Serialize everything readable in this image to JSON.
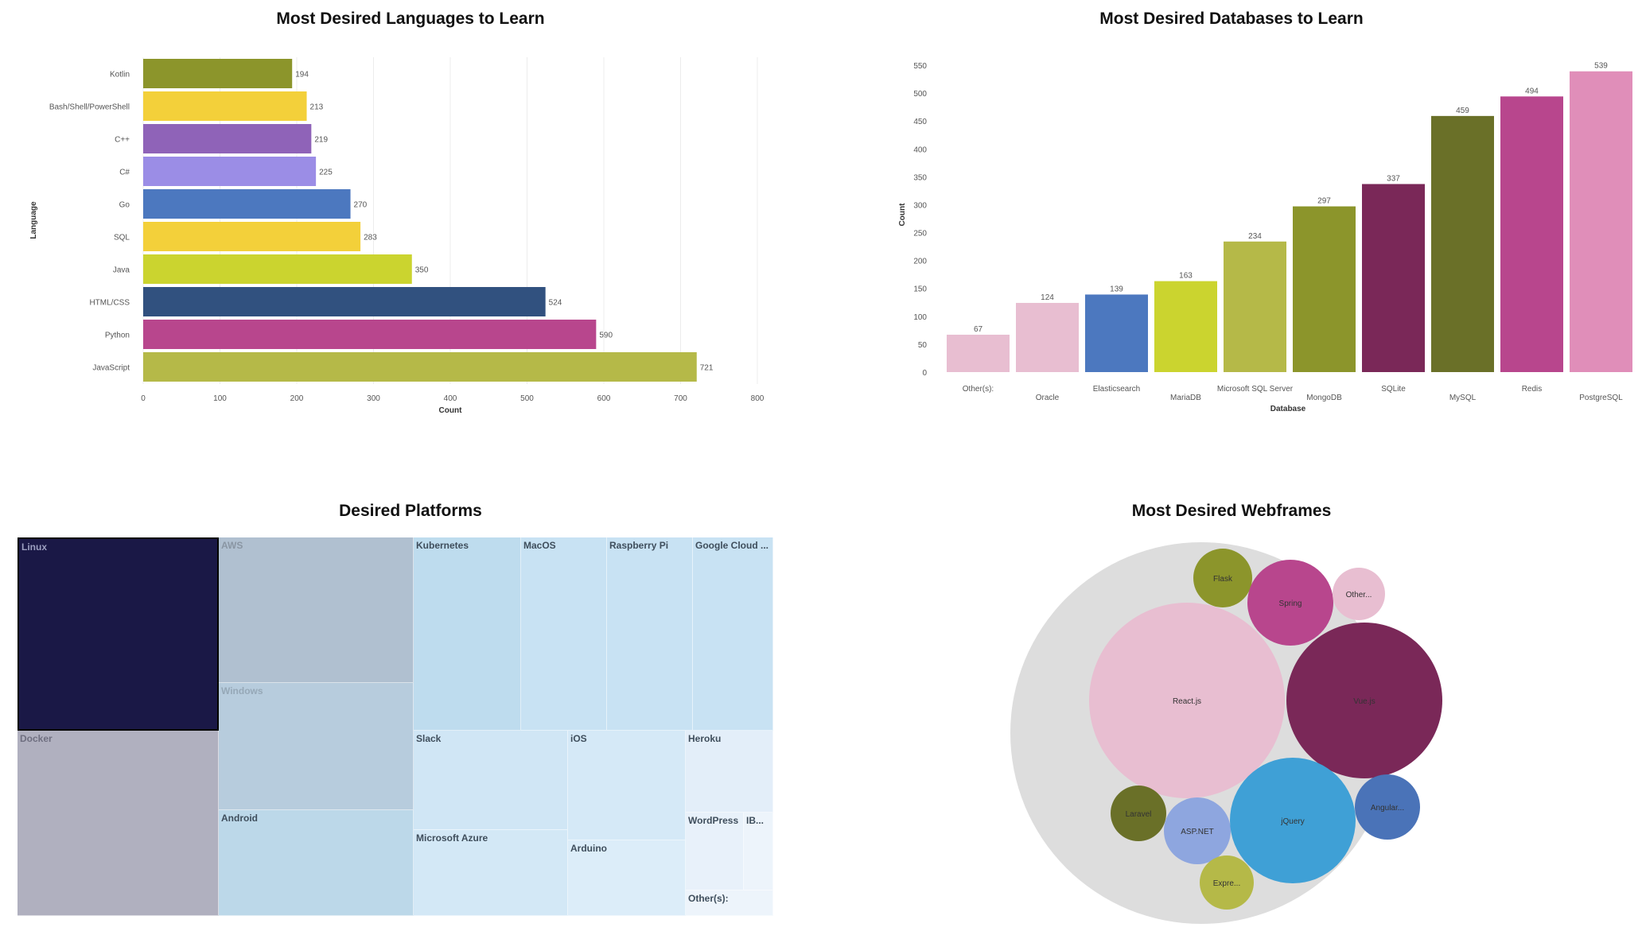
{
  "chart_data": [
    {
      "id": "languages",
      "type": "bar",
      "orientation": "horizontal",
      "title": "Most Desired Languages to Learn",
      "xlabel": "Count",
      "ylabel": "Language",
      "xlim": [
        0,
        800
      ],
      "xticks": [
        0,
        100,
        200,
        300,
        400,
        500,
        600,
        700,
        800
      ],
      "categories": [
        "Kotlin",
        "Bash/Shell/PowerShell",
        "C++",
        "C#",
        "Go",
        "SQL",
        "Java",
        "HTML/CSS",
        "Python",
        "JavaScript"
      ],
      "values": [
        194,
        213,
        219,
        225,
        270,
        283,
        350,
        524,
        590,
        721
      ],
      "colors": [
        "#8c952b",
        "#f3d03a",
        "#8f63b8",
        "#9b8de6",
        "#4c78bf",
        "#f3d03a",
        "#cbd42f",
        "#31517f",
        "#b8468d",
        "#b5b948"
      ]
    },
    {
      "id": "databases",
      "type": "bar",
      "orientation": "vertical",
      "title": "Most Desired Databases to Learn",
      "xlabel": "Database",
      "ylabel": "Count",
      "ylim": [
        0,
        550
      ],
      "yticks": [
        0,
        50,
        100,
        150,
        200,
        250,
        300,
        350,
        400,
        450,
        500,
        550
      ],
      "categories": [
        "Other(s):",
        "Oracle",
        "Elasticsearch",
        "MariaDB",
        "Microsoft SQL Server",
        "MongoDB",
        "SQLite",
        "MySQL",
        "Redis",
        "PostgreSQL"
      ],
      "values": [
        67,
        124,
        139,
        163,
        234,
        297,
        337,
        459,
        494,
        539
      ],
      "colors": [
        "#e8bed1",
        "#e8bed1",
        "#4c78bf",
        "#cbd42f",
        "#b5b948",
        "#8c952b",
        "#7a2858",
        "#6a7028",
        "#b8468d",
        "#e08eb9"
      ]
    },
    {
      "id": "platforms",
      "type": "treemap",
      "title": "Desired Platforms",
      "labels": [
        "Linux",
        "Docker",
        "AWS",
        "Windows",
        "Android",
        "Kubernetes",
        "MacOS",
        "Raspberry Pi",
        "Google Cloud ...",
        "Slack",
        "Microsoft Azure",
        "iOS",
        "Arduino",
        "Heroku",
        "WordPress",
        "IB...",
        "Other(s):"
      ]
    },
    {
      "id": "webframes",
      "type": "packed-bubble",
      "title": "Most Desired Webframes",
      "labels": [
        "Flask",
        "Spring",
        "Other...",
        "React.js",
        "Vue.js",
        "Laravel",
        "ASP.NET",
        "jQuery",
        "Angular...",
        "Expre..."
      ]
    }
  ]
}
